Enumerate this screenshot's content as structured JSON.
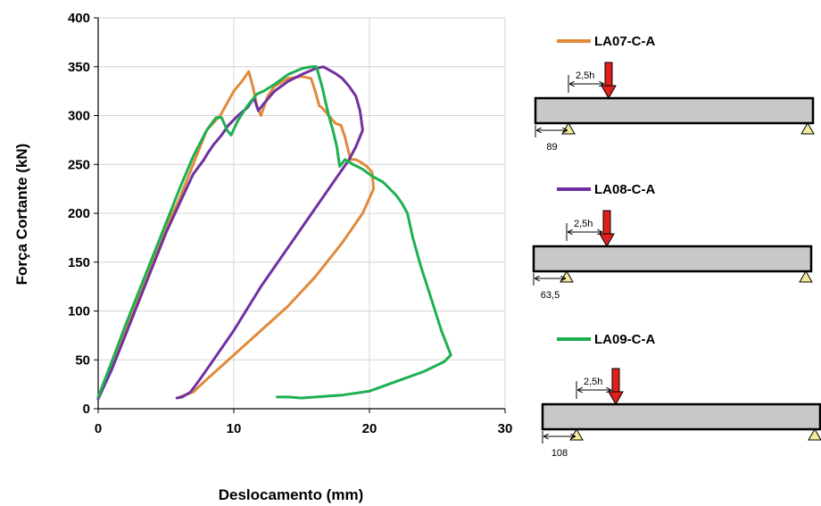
{
  "chart_data": {
    "type": "line",
    "title": "",
    "xlabel": "Deslocamento (mm)",
    "ylabel": "Força Cortante (kN)",
    "xlim": [
      0,
      30
    ],
    "ylim": [
      0,
      400
    ],
    "xticks": [
      "0",
      "10",
      "20",
      "30"
    ],
    "yticks": [
      "0",
      "50",
      "100",
      "150",
      "200",
      "250",
      "300",
      "350",
      "400"
    ],
    "grid": true,
    "legend_placement": "right",
    "series": [
      {
        "name": "LA07-C-A",
        "color": "#E08A3C",
        "points": [
          [
            0,
            12
          ],
          [
            1,
            45
          ],
          [
            2,
            80
          ],
          [
            3,
            115
          ],
          [
            4,
            150
          ],
          [
            5,
            185
          ],
          [
            6,
            215
          ],
          [
            7,
            250
          ],
          [
            8,
            285
          ],
          [
            9,
            300
          ],
          [
            10,
            325
          ],
          [
            10.6,
            335
          ],
          [
            11.1,
            345
          ],
          [
            11.4,
            330
          ],
          [
            11.7,
            310
          ],
          [
            12,
            300
          ],
          [
            12.5,
            320
          ],
          [
            13,
            330
          ],
          [
            14,
            338
          ],
          [
            15,
            340
          ],
          [
            15.7,
            338
          ],
          [
            16,
            325
          ],
          [
            16.3,
            310
          ],
          [
            16.5,
            308
          ],
          [
            17,
            300
          ],
          [
            17.5,
            292
          ],
          [
            17.9,
            290
          ],
          [
            18.2,
            278
          ],
          [
            18.6,
            255
          ],
          [
            19,
            255
          ],
          [
            19.4,
            252
          ],
          [
            19.8,
            248
          ],
          [
            20.2,
            242
          ],
          [
            20.3,
            225
          ],
          [
            19.5,
            200
          ],
          [
            18,
            170
          ],
          [
            16,
            135
          ],
          [
            14,
            105
          ],
          [
            12,
            80
          ],
          [
            10,
            55
          ],
          [
            8,
            30
          ],
          [
            7,
            17
          ],
          [
            6,
            12
          ]
        ]
      },
      {
        "name": "LA08-C-A",
        "color": "#7030A0",
        "points": [
          [
            0,
            10
          ],
          [
            1,
            40
          ],
          [
            2,
            75
          ],
          [
            3,
            110
          ],
          [
            4,
            145
          ],
          [
            5,
            180
          ],
          [
            6,
            210
          ],
          [
            7,
            240
          ],
          [
            7.8,
            255
          ],
          [
            8.1,
            262
          ],
          [
            8.5,
            270
          ],
          [
            9.1,
            280
          ],
          [
            9.6,
            290
          ],
          [
            10.3,
            300
          ],
          [
            11,
            308
          ],
          [
            11.5,
            318
          ],
          [
            11.8,
            305
          ],
          [
            12.2,
            312
          ],
          [
            13,
            325
          ],
          [
            14,
            335
          ],
          [
            15,
            342
          ],
          [
            16,
            348
          ],
          [
            16.6,
            350
          ],
          [
            17.5,
            343
          ],
          [
            18,
            338
          ],
          [
            18.5,
            330
          ],
          [
            19,
            320
          ],
          [
            19.3,
            305
          ],
          [
            19.5,
            285
          ],
          [
            19,
            268
          ],
          [
            18.5,
            255
          ],
          [
            17.5,
            235
          ],
          [
            16,
            205
          ],
          [
            14,
            165
          ],
          [
            12,
            125
          ],
          [
            10,
            80
          ],
          [
            8.5,
            50
          ],
          [
            7.5,
            30
          ],
          [
            6.8,
            17
          ],
          [
            6.2,
            12
          ],
          [
            5.8,
            11
          ]
        ]
      },
      {
        "name": "LA09-C-A",
        "color": "#1DB050",
        "points": [
          [
            0,
            12
          ],
          [
            1,
            48
          ],
          [
            2,
            85
          ],
          [
            3,
            120
          ],
          [
            4,
            155
          ],
          [
            5,
            190
          ],
          [
            6,
            225
          ],
          [
            7,
            258
          ],
          [
            8,
            285
          ],
          [
            8.7,
            298
          ],
          [
            9.1,
            298
          ],
          [
            9.5,
            285
          ],
          [
            9.8,
            280
          ],
          [
            10.3,
            295
          ],
          [
            11,
            310
          ],
          [
            11.7,
            322
          ],
          [
            12.2,
            325
          ],
          [
            13,
            332
          ],
          [
            14,
            342
          ],
          [
            15,
            348
          ],
          [
            15.7,
            350
          ],
          [
            16.1,
            350
          ],
          [
            16.5,
            330
          ],
          [
            17,
            300
          ],
          [
            17.3,
            285
          ],
          [
            17.6,
            268
          ],
          [
            17.8,
            248
          ],
          [
            18.2,
            255
          ],
          [
            18.8,
            250
          ],
          [
            19.5,
            245
          ],
          [
            20.2,
            238
          ],
          [
            21,
            232
          ],
          [
            21.5,
            225
          ],
          [
            22,
            218
          ],
          [
            22.4,
            210
          ],
          [
            22.8,
            200
          ],
          [
            23.2,
            175
          ],
          [
            23.8,
            145
          ],
          [
            24.5,
            115
          ],
          [
            25.3,
            80
          ],
          [
            26,
            55
          ],
          [
            25.5,
            48
          ],
          [
            24,
            38
          ],
          [
            22,
            28
          ],
          [
            20,
            18
          ],
          [
            18,
            14
          ],
          [
            16,
            12
          ],
          [
            15,
            11
          ],
          [
            14,
            12
          ],
          [
            13.2,
            12
          ]
        ]
      }
    ],
    "beam_diagrams": [
      {
        "label": "LA07-C-A",
        "load_offset_label": "2,5h",
        "support_offset_label": "89"
      },
      {
        "label": "LA08-C-A",
        "load_offset_label": "2,5h",
        "support_offset_label": "63,5"
      },
      {
        "label": "LA09-C-A",
        "load_offset_label": "2,5h",
        "support_offset_label": "108"
      }
    ]
  }
}
